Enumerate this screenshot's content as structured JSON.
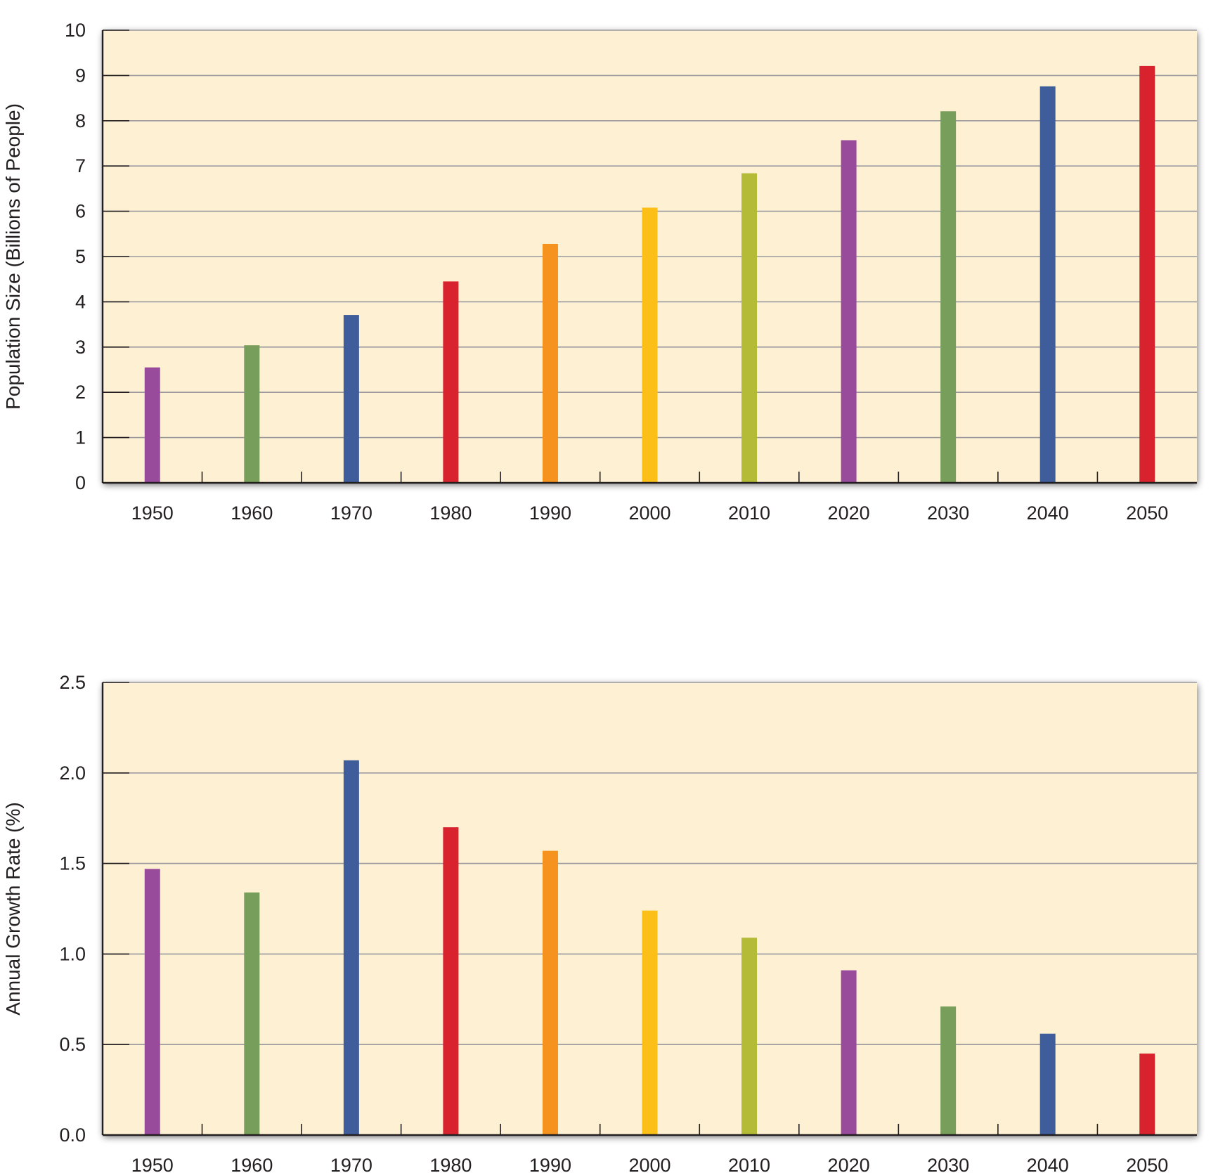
{
  "chart_data": [
    {
      "type": "bar",
      "categories": [
        "1950",
        "1960",
        "1970",
        "1980",
        "1990",
        "2000",
        "2010",
        "2020",
        "2030",
        "2040",
        "2050"
      ],
      "values": [
        2.55,
        3.04,
        3.71,
        4.45,
        5.28,
        6.08,
        6.84,
        7.57,
        8.21,
        8.76,
        9.21
      ],
      "xlabel": "",
      "ylabel": "Population Size (Billions of People)",
      "ylim": [
        0,
        10
      ],
      "yticks": [
        "0",
        "1",
        "2",
        "3",
        "4",
        "5",
        "6",
        "7",
        "8",
        "9",
        "10"
      ],
      "grid": true,
      "plot_background": "#fef1d3",
      "bar_colors": [
        "#984a9b",
        "#779e5a",
        "#3f5d9a",
        "#d8232e",
        "#f6921e",
        "#fcbf18",
        "#b4bb37",
        "#984a9b",
        "#779e5a",
        "#3f5d9a",
        "#d8232e"
      ]
    },
    {
      "type": "bar",
      "categories": [
        "1950",
        "1960",
        "1970",
        "1980",
        "1990",
        "2000",
        "2010",
        "2020",
        "2030",
        "2040",
        "2050"
      ],
      "values": [
        1.47,
        1.34,
        2.07,
        1.7,
        1.57,
        1.24,
        1.09,
        0.91,
        0.71,
        0.56,
        0.45
      ],
      "xlabel": "",
      "ylabel": "Annual Growth Rate (%)",
      "ylim": [
        0,
        2.5
      ],
      "yticks": [
        "0.0",
        "0.5",
        "1.0",
        "1.5",
        "2.0",
        "2.5"
      ],
      "grid": true,
      "plot_background": "#fef1d3",
      "bar_colors": [
        "#984a9b",
        "#779e5a",
        "#3f5d9a",
        "#d8232e",
        "#f6921e",
        "#fcbf18",
        "#b4bb37",
        "#984a9b",
        "#779e5a",
        "#3f5d9a",
        "#d8232e"
      ]
    }
  ]
}
